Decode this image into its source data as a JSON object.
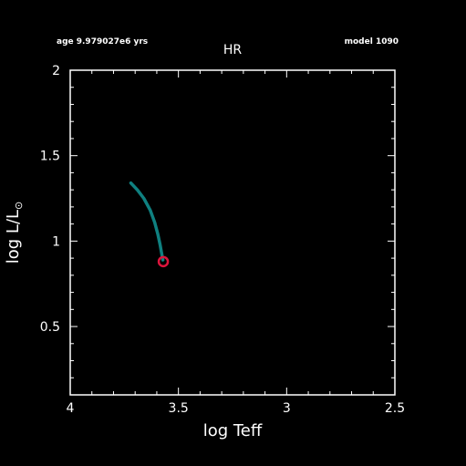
{
  "header": {
    "age_text": "age 9.979027e6 yrs",
    "model_text": "model 1090",
    "title": "HR"
  },
  "chart_data": {
    "type": "line",
    "title": "HR",
    "xlabel": "log Teff",
    "ylabel": "log L/L",
    "ylabel_symbol": "⊙",
    "xlim": [
      4,
      2.5
    ],
    "ylim": [
      0.1,
      2
    ],
    "x_ticks": [
      "4",
      "3.5",
      "3",
      "2.5"
    ],
    "y_ticks": [
      "2",
      "1.5",
      "1",
      "0.5"
    ],
    "grid": false,
    "series": [
      {
        "x": [
          3.72,
          3.69,
          3.66,
          3.63,
          3.61,
          3.595,
          3.585,
          3.578,
          3.572
        ],
        "y": [
          1.34,
          1.3,
          1.25,
          1.18,
          1.11,
          1.04,
          0.98,
          0.93,
          0.89
        ],
        "color": "#0f8080"
      }
    ],
    "current_point": {
      "x": 3.57,
      "y": 0.88,
      "color": "#dc143c"
    }
  }
}
